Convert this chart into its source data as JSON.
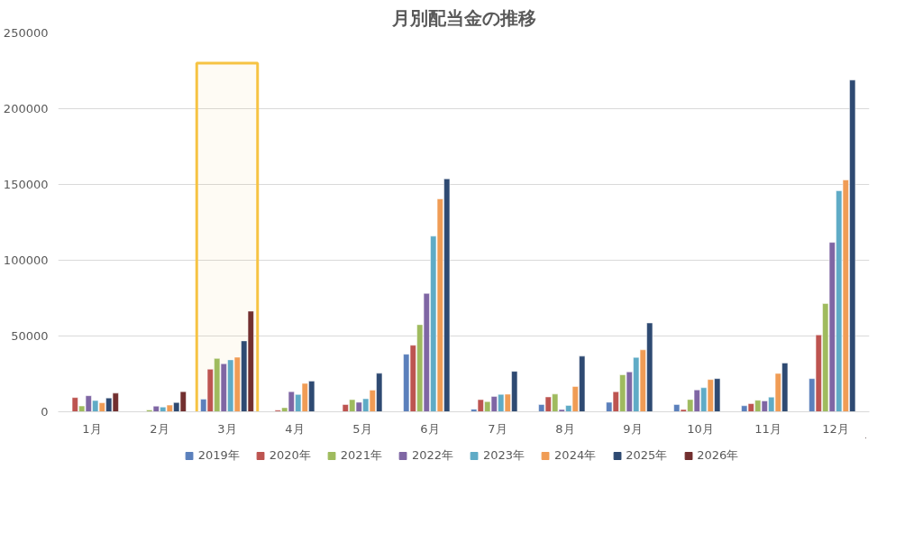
{
  "chart_data": {
    "type": "bar",
    "title": "月別配当金の推移",
    "categories": [
      "1月",
      "2月",
      "3月",
      "4月",
      "5月",
      "6月",
      "7月",
      "8月",
      "9月",
      "10月",
      "11月",
      "12月"
    ],
    "series": [
      {
        "name": "2019年",
        "color": "#5b80bc",
        "values": [
          null,
          null,
          8300,
          null,
          null,
          38000,
          1700,
          4800,
          6300,
          4800,
          4000,
          21900
        ]
      },
      {
        "name": "2020年",
        "color": "#bd5450",
        "values": [
          9400,
          null,
          28100,
          1000,
          4800,
          43900,
          8000,
          9800,
          13200,
          1500,
          5400,
          50700
        ]
      },
      {
        "name": "2021年",
        "color": "#9fbb5e",
        "values": [
          3800,
          1200,
          35200,
          2700,
          8000,
          57500,
          6700,
          11700,
          24400,
          8100,
          7600,
          71400
        ]
      },
      {
        "name": "2022年",
        "color": "#7f66a4",
        "values": [
          10600,
          3700,
          31700,
          13300,
          6300,
          78100,
          10100,
          1500,
          26300,
          14400,
          7200,
          111800
        ]
      },
      {
        "name": "2023年",
        "color": "#5fabc6",
        "values": [
          7400,
          3100,
          34300,
          11400,
          8600,
          115900,
          11500,
          4200,
          35900,
          15900,
          9700,
          145900
        ]
      },
      {
        "name": "2024年",
        "color": "#f09c55",
        "values": [
          5900,
          4400,
          36000,
          18700,
          14300,
          140500,
          11600,
          16700,
          40900,
          21300,
          25300,
          153000
        ]
      },
      {
        "name": "2025年",
        "color": "#2e4a72",
        "values": [
          9100,
          6100,
          46800,
          20200,
          25400,
          153700,
          26700,
          36700,
          58600,
          21900,
          32200,
          218900
        ]
      },
      {
        "name": "2026年",
        "color": "#722f2f",
        "values": [
          12300,
          13300,
          66400,
          null,
          null,
          null,
          null,
          null,
          null,
          null,
          null,
          null
        ]
      }
    ],
    "ylim": [
      0,
      250000
    ],
    "yticks": [
      0,
      50000,
      100000,
      150000,
      200000,
      250000
    ],
    "grid": "y",
    "legend": "bottom",
    "bands": [
      {
        "axis": "x",
        "from": "3月",
        "to": "3月",
        "color": "#f6c343"
      }
    ]
  }
}
